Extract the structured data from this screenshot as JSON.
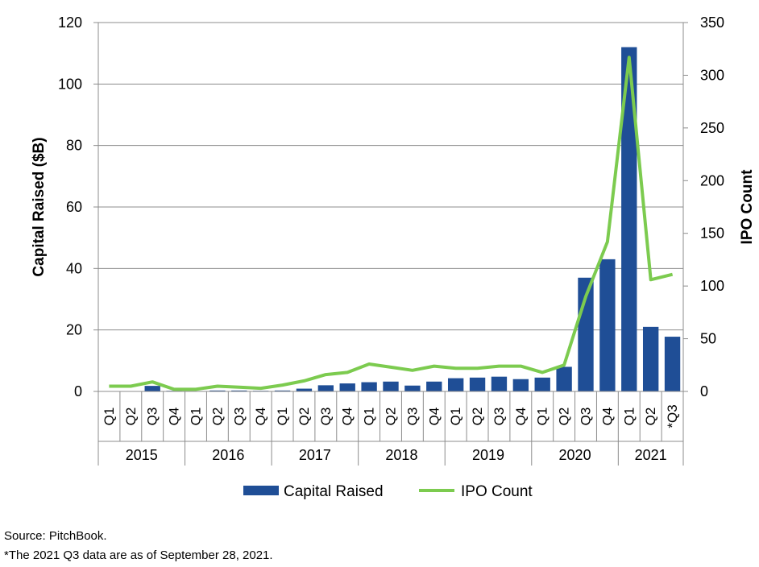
{
  "chart_data": {
    "type": "bar+line",
    "title": "",
    "ylabel_left": "Capital Raised ($B)",
    "ylabel_right": "IPO Count",
    "ylim_left": [
      0,
      120
    ],
    "ylim_right": [
      0,
      350
    ],
    "yticks_left": [
      "0",
      "20",
      "40",
      "60",
      "80",
      "100",
      "120"
    ],
    "yticks_right": [
      "0",
      "50",
      "100",
      "150",
      "200",
      "250",
      "300",
      "350"
    ],
    "grid": true,
    "legend_position": "bottom",
    "years": [
      "2015",
      "2016",
      "2017",
      "2018",
      "2019",
      "2020",
      "2021"
    ],
    "categories": [
      "Q1",
      "Q2",
      "Q3",
      "Q4",
      "Q1",
      "Q2",
      "Q3",
      "Q4",
      "Q1",
      "Q2",
      "Q3",
      "Q4",
      "Q1",
      "Q2",
      "Q3",
      "Q4",
      "Q1",
      "Q2",
      "Q3",
      "Q4",
      "Q1",
      "Q2",
      "Q3",
      "Q4",
      "Q1",
      "Q2",
      "*Q3"
    ],
    "series": [
      {
        "name": "Capital Raised",
        "type": "bar",
        "axis": "left",
        "color": "#1F4E96",
        "values": [
          0.1,
          0.1,
          1.8,
          0.2,
          0.1,
          0.3,
          0.3,
          0.2,
          0.3,
          0.9,
          2.0,
          2.6,
          3.0,
          3.2,
          1.9,
          3.2,
          4.3,
          4.5,
          4.8,
          4.0,
          4.5,
          8.0,
          37.0,
          43.0,
          112.0,
          21.0,
          17.8
        ]
      },
      {
        "name": "IPO Count",
        "type": "line",
        "axis": "right",
        "color": "#7CCB4F",
        "values": [
          5,
          5,
          9,
          2,
          2,
          5,
          4,
          3,
          6,
          10,
          16,
          18,
          26,
          23,
          20,
          24,
          22,
          22,
          24,
          24,
          18,
          25,
          90,
          142,
          317,
          106,
          111
        ]
      }
    ]
  },
  "source_text": "Source: PitchBook.",
  "footnote_text": "*The 2021 Q3 data are as of September 28, 2021."
}
